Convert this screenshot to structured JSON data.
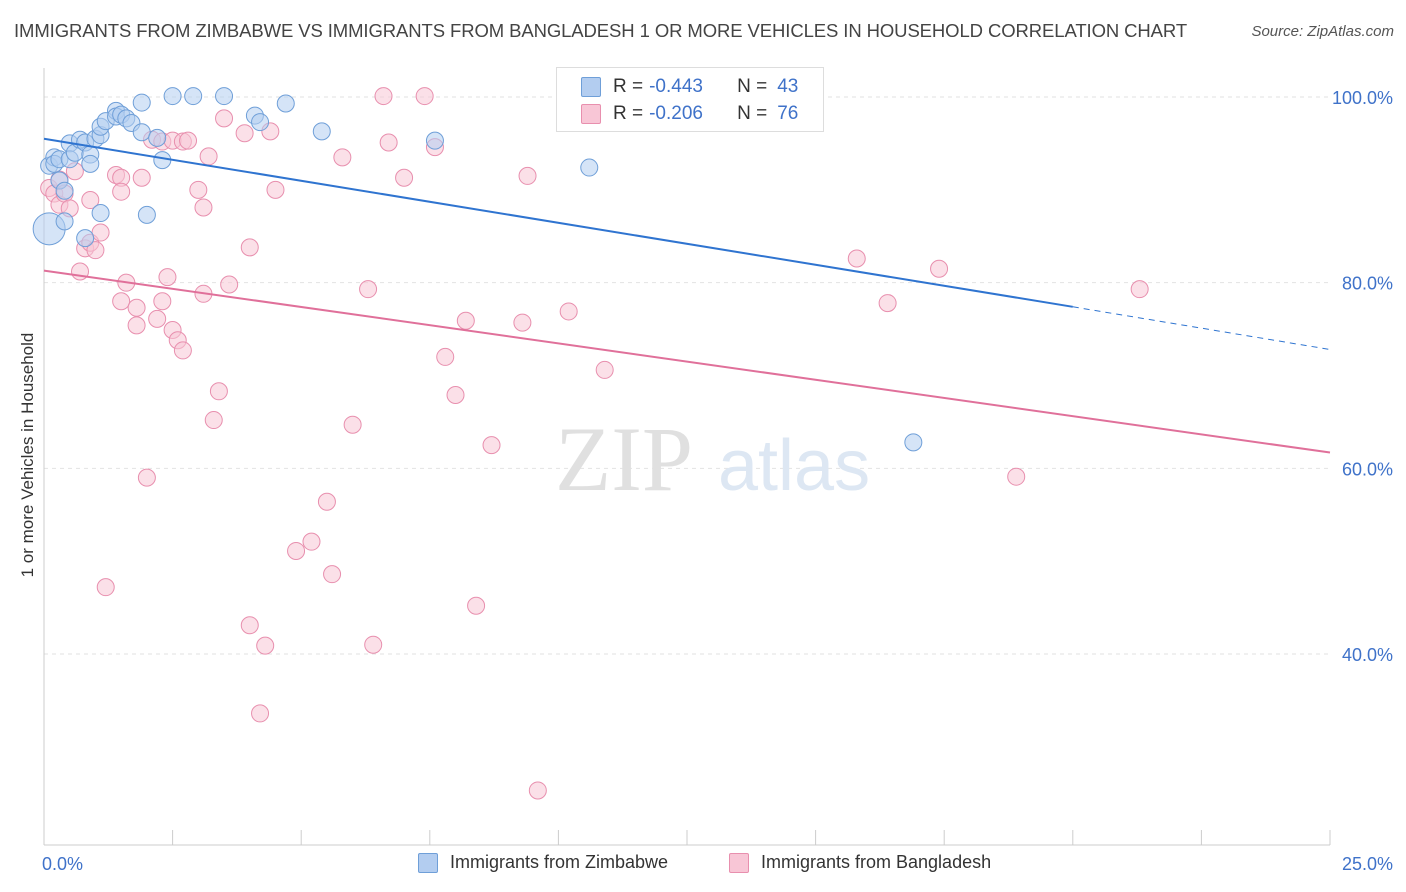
{
  "title": "IMMIGRANTS FROM ZIMBABWE VS IMMIGRANTS FROM BANGLADESH 1 OR MORE VEHICLES IN HOUSEHOLD CORRELATION CHART",
  "source": "Source: ZipAtlas.com",
  "watermark": {
    "zip": "ZIP",
    "atlas": "atlas"
  },
  "legend_top": {
    "rows": [
      {
        "r_label": "R = ",
        "r_value": "-0.443",
        "n_label": "N = ",
        "n_value": "43"
      },
      {
        "r_label": "R = ",
        "r_value": "-0.206",
        "n_label": "N = ",
        "n_value": "76"
      }
    ]
  },
  "chart_data": {
    "type": "scatter",
    "title": "IMMIGRANTS FROM ZIMBABWE VS IMMIGRANTS FROM BANGLADESH 1 OR MORE VEHICLES IN HOUSEHOLD CORRELATION CHART",
    "xlabel": "",
    "ylabel": "1 or more Vehicles in Household",
    "xlim": [
      0,
      25
    ],
    "ylim": [
      21,
      102
    ],
    "x_tick_labels": [
      "0.0%",
      "25.0%"
    ],
    "y_ticks": [
      100,
      80,
      60,
      40
    ],
    "y_tick_labels": [
      "100.0%",
      "80.0%",
      "60.0%",
      "40.0%"
    ],
    "grid": true,
    "legend_position": "top-center",
    "colors": {
      "zimbabwe": "#6f9fd8",
      "bangladesh": "#e88fae",
      "zimbabwe_line": "#2f74d0",
      "bangladesh_line": "#e0709a"
    },
    "series": [
      {
        "name": "Immigrants from Zimbabwe",
        "r": -0.443,
        "n": 43,
        "trend": {
          "x0": 0,
          "y0": 95.5,
          "x1": 20,
          "y1": 77.4,
          "dash_to_x": 25,
          "dash_to_y": 72.8
        },
        "points": [
          [
            0.1,
            85.8
          ],
          [
            0.1,
            92.6
          ],
          [
            0.2,
            93.5
          ],
          [
            0.2,
            92.8
          ],
          [
            0.3,
            93.3
          ],
          [
            0.3,
            91.0
          ],
          [
            0.4,
            89.9
          ],
          [
            0.4,
            86.6
          ],
          [
            0.5,
            95.0
          ],
          [
            0.5,
            93.3
          ],
          [
            0.6,
            94.0
          ],
          [
            0.7,
            95.4
          ],
          [
            0.8,
            95.1
          ],
          [
            0.8,
            84.8
          ],
          [
            0.9,
            93.8
          ],
          [
            0.9,
            92.8
          ],
          [
            1.0,
            95.5
          ],
          [
            1.1,
            95.9
          ],
          [
            1.1,
            96.8
          ],
          [
            1.1,
            87.5
          ],
          [
            1.2,
            97.4
          ],
          [
            1.4,
            98.5
          ],
          [
            1.4,
            97.9
          ],
          [
            1.5,
            98.1
          ],
          [
            1.6,
            97.7
          ],
          [
            1.7,
            97.2
          ],
          [
            1.9,
            96.2
          ],
          [
            2.0,
            87.3
          ],
          [
            1.9,
            99.4
          ],
          [
            2.2,
            95.6
          ],
          [
            2.3,
            93.2
          ],
          [
            2.5,
            100.1
          ],
          [
            2.9,
            100.1
          ],
          [
            3.5,
            100.1
          ],
          [
            4.1,
            98.0
          ],
          [
            4.2,
            97.3
          ],
          [
            4.7,
            99.3
          ],
          [
            5.4,
            96.3
          ],
          [
            7.6,
            95.3
          ],
          [
            10.6,
            92.4
          ],
          [
            16.9,
            62.8
          ]
        ]
      },
      {
        "name": "Immigrants from Bangladesh",
        "r": -0.206,
        "n": 76,
        "trend": {
          "x0": 0,
          "y0": 81.3,
          "x1": 25,
          "y1": 61.7
        },
        "points": [
          [
            0.1,
            90.2
          ],
          [
            0.2,
            89.6
          ],
          [
            0.3,
            88.4
          ],
          [
            0.3,
            91.1
          ],
          [
            0.4,
            89.6
          ],
          [
            0.5,
            88.0
          ],
          [
            0.6,
            92.0
          ],
          [
            0.7,
            81.2
          ],
          [
            0.8,
            83.7
          ],
          [
            0.9,
            84.3
          ],
          [
            0.9,
            88.9
          ],
          [
            1.0,
            83.5
          ],
          [
            1.1,
            85.4
          ],
          [
            1.2,
            47.2
          ],
          [
            1.4,
            91.6
          ],
          [
            1.5,
            91.3
          ],
          [
            1.5,
            89.8
          ],
          [
            1.5,
            78.0
          ],
          [
            1.6,
            80.0
          ],
          [
            1.8,
            77.3
          ],
          [
            1.8,
            75.4
          ],
          [
            1.9,
            91.3
          ],
          [
            2.0,
            59.0
          ],
          [
            2.1,
            95.4
          ],
          [
            2.2,
            76.1
          ],
          [
            2.3,
            95.2
          ],
          [
            2.3,
            78.0
          ],
          [
            2.4,
            80.6
          ],
          [
            2.5,
            95.3
          ],
          [
            2.5,
            74.9
          ],
          [
            2.6,
            73.8
          ],
          [
            2.7,
            72.7
          ],
          [
            2.7,
            95.2
          ],
          [
            2.8,
            95.3
          ],
          [
            3.0,
            90.0
          ],
          [
            3.1,
            88.1
          ],
          [
            3.1,
            78.8
          ],
          [
            3.2,
            93.6
          ],
          [
            3.3,
            65.2
          ],
          [
            3.4,
            68.3
          ],
          [
            3.5,
            97.7
          ],
          [
            3.6,
            79.8
          ],
          [
            3.9,
            96.1
          ],
          [
            4.0,
            83.8
          ],
          [
            4.0,
            43.1
          ],
          [
            4.2,
            33.6
          ],
          [
            4.3,
            40.9
          ],
          [
            4.4,
            96.3
          ],
          [
            4.5,
            90.0
          ],
          [
            4.9,
            51.1
          ],
          [
            5.2,
            52.1
          ],
          [
            5.5,
            56.4
          ],
          [
            5.6,
            48.6
          ],
          [
            5.8,
            93.5
          ],
          [
            6.0,
            64.7
          ],
          [
            6.3,
            79.3
          ],
          [
            6.4,
            41.0
          ],
          [
            6.6,
            100.1
          ],
          [
            6.7,
            95.1
          ],
          [
            7.0,
            91.3
          ],
          [
            7.4,
            100.1
          ],
          [
            7.6,
            94.6
          ],
          [
            7.8,
            72.0
          ],
          [
            8.0,
            67.9
          ],
          [
            8.2,
            75.9
          ],
          [
            8.4,
            45.2
          ],
          [
            8.7,
            62.5
          ],
          [
            9.3,
            75.7
          ],
          [
            9.4,
            91.5
          ],
          [
            9.6,
            25.3
          ],
          [
            10.2,
            76.9
          ],
          [
            10.9,
            70.6
          ],
          [
            15.8,
            82.6
          ],
          [
            16.4,
            77.8
          ],
          [
            17.4,
            81.5
          ],
          [
            18.9,
            59.1
          ],
          [
            21.3,
            79.3
          ]
        ]
      }
    ]
  }
}
